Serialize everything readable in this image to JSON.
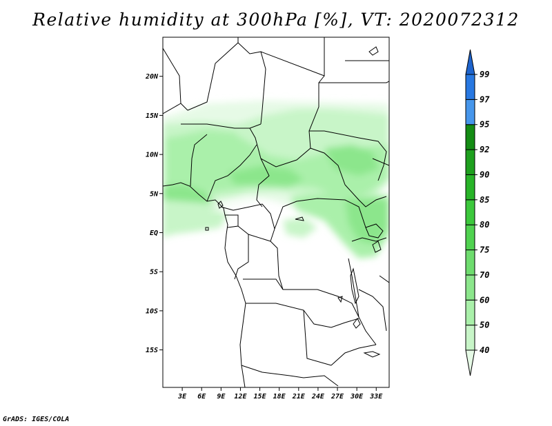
{
  "title": "Relative humidity at 300hPa [%], VT: 2020072312",
  "credit": "GrADS: IGES/COLA",
  "map": {
    "lat_labels": [
      "20N",
      "15N",
      "10N",
      "5N",
      "EQ",
      "5S",
      "10S",
      "15S"
    ],
    "lat_values": [
      20,
      15,
      10,
      5,
      0,
      -5,
      -10,
      -15
    ],
    "lon_labels": [
      "3E",
      "6E",
      "9E",
      "12E",
      "15E",
      "18E",
      "21E",
      "24E",
      "27E",
      "30E",
      "33E"
    ],
    "lon_values": [
      3,
      6,
      9,
      12,
      15,
      18,
      21,
      24,
      27,
      30,
      33
    ],
    "lon_range": [
      0,
      35
    ],
    "lat_range": [
      -19.8,
      25
    ]
  },
  "colorbar": {
    "levels": [
      "40",
      "50",
      "60",
      "70",
      "75",
      "80",
      "85",
      "90",
      "92",
      "95",
      "97",
      "99"
    ],
    "colors": [
      "#e6fae6",
      "#c8f5c8",
      "#aaf0aa",
      "#8ce68c",
      "#6edc6e",
      "#50d250",
      "#3cc83c",
      "#28b428",
      "#1ea01e",
      "#148c14",
      "#4696eb",
      "#2878e1",
      "#1e64cd"
    ]
  }
}
